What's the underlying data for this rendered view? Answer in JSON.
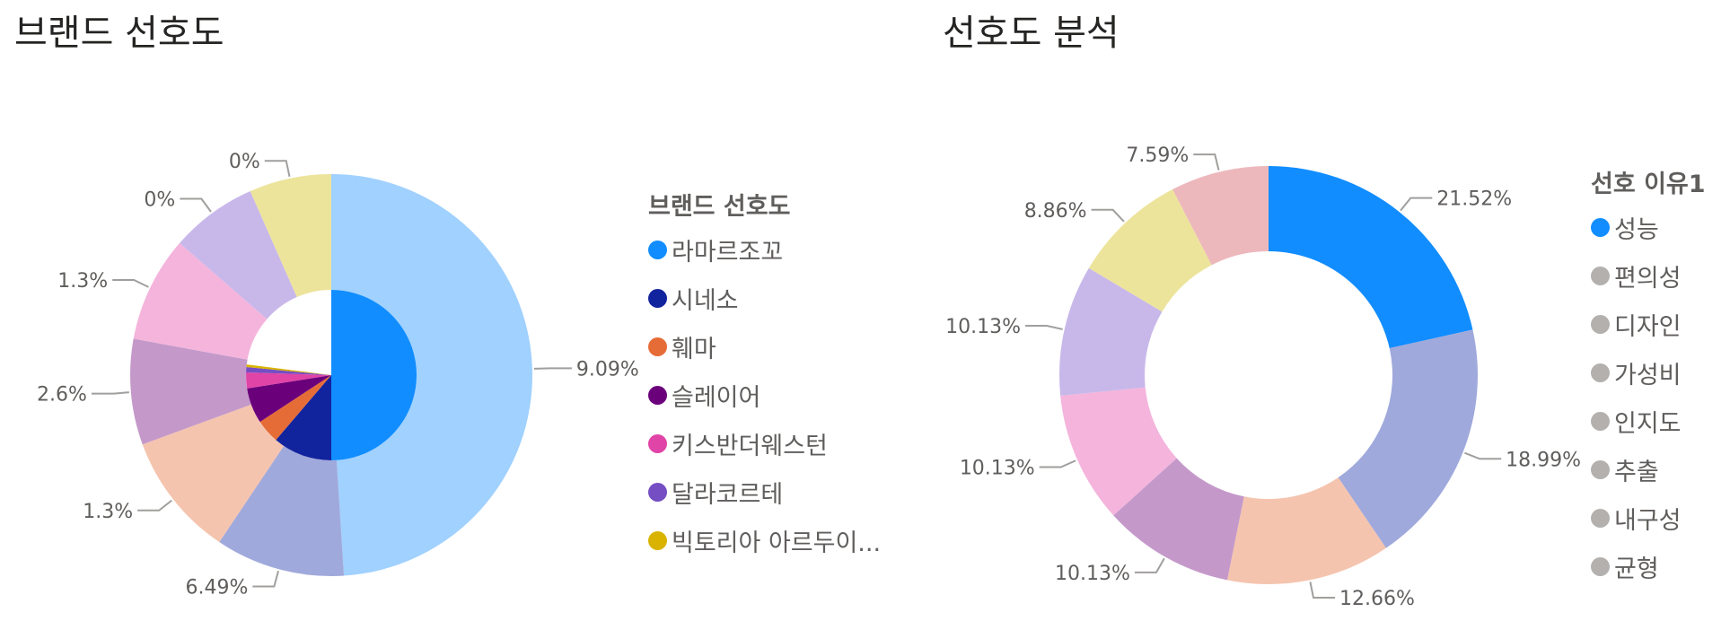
{
  "chart_data": [
    {
      "type": "pie",
      "title": "브랜드 선호도",
      "legend": {
        "title": "브랜드 선호도",
        "placement": "right",
        "items": [
          {
            "label": "라마르조꼬",
            "color": "#118DFF"
          },
          {
            "label": "시네소",
            "color": "#12239E"
          },
          {
            "label": "훼마",
            "color": "#E66C37"
          },
          {
            "label": "슬레이어",
            "color": "#6B007B"
          },
          {
            "label": "키스반더웨스턴",
            "color": "#E044A7"
          },
          {
            "label": "달라코르테",
            "color": "#744EC2"
          },
          {
            "label": "빅토리아 아르두이...",
            "color": "#D9B300"
          }
        ]
      },
      "inner_ring": [
        {
          "category": "라마르조꼬",
          "share_of_ring": 0.5,
          "color": "#118DFF"
        },
        {
          "category": "시네소",
          "share_of_ring": 0.1125,
          "color": "#12239E"
        },
        {
          "category": "훼마",
          "share_of_ring": 0.045,
          "color": "#E66C37"
        },
        {
          "category": "슬레이어",
          "share_of_ring": 0.0675,
          "color": "#6B007B"
        },
        {
          "category": "키스반더웨스턴",
          "share_of_ring": 0.03,
          "color": "#E044A7"
        },
        {
          "category": "달라코르테",
          "share_of_ring": 0.01,
          "color": "#744EC2"
        },
        {
          "category": "빅토리아 아르두이...",
          "share_of_ring": 0.005,
          "color": "#D9B300"
        }
      ],
      "outer_ring": [
        {
          "label": "9.09%",
          "share_of_ring": 0.49,
          "color": "#A0D1FF"
        },
        {
          "label": "6.49%",
          "share_of_ring": 0.104,
          "color": "#A0A9DB"
        },
        {
          "label": "1.3%",
          "share_of_ring": 0.1,
          "color": "#F5C4AF"
        },
        {
          "label": "2.6%",
          "share_of_ring": 0.085,
          "color": "#C499CA"
        },
        {
          "label": "1.3%",
          "share_of_ring": 0.085,
          "color": "#F4B4DC"
        },
        {
          "label": "0%",
          "share_of_ring": 0.07,
          "color": "#C8B8EA"
        },
        {
          "label": "0%",
          "share_of_ring": 0.066,
          "color": "#EDE49C"
        }
      ]
    },
    {
      "type": "pie",
      "variant": "donut",
      "title": "선호도 분석",
      "legend": {
        "title": "선호 이유1",
        "placement": "right",
        "items": [
          {
            "label": "성능",
            "color": "#118DFF"
          },
          {
            "label": "편의성",
            "color": "#B3B0AD"
          },
          {
            "label": "디자인",
            "color": "#B3B0AD"
          },
          {
            "label": "가성비",
            "color": "#B3B0AD"
          },
          {
            "label": "인지도",
            "color": "#B3B0AD"
          },
          {
            "label": "추출",
            "color": "#B3B0AD"
          },
          {
            "label": "내구성",
            "color": "#B3B0AD"
          },
          {
            "label": "균형",
            "color": "#B3B0AD"
          }
        ]
      },
      "slices": [
        {
          "category": "성능",
          "value": 21.52,
          "label": "21.52%",
          "color": "#118DFF"
        },
        {
          "category": "편의성",
          "value": 18.99,
          "label": "18.99%",
          "color": "#A0A9DB"
        },
        {
          "category": "디자인",
          "value": 12.66,
          "label": "12.66%",
          "color": "#F5C4AF"
        },
        {
          "category": "가성비",
          "value": 10.13,
          "label": "10.13%",
          "color": "#C499CA"
        },
        {
          "category": "인지도",
          "value": 10.13,
          "label": "10.13%",
          "color": "#F4B4DC"
        },
        {
          "category": "추출",
          "value": 10.13,
          "label": "10.13%",
          "color": "#C8B8EA"
        },
        {
          "category": "내구성",
          "value": 8.86,
          "label": "8.86%",
          "color": "#EDE49C"
        },
        {
          "category": "균형",
          "value": 7.59,
          "label": "7.59%",
          "color": "#EDB8BC"
        }
      ]
    }
  ]
}
